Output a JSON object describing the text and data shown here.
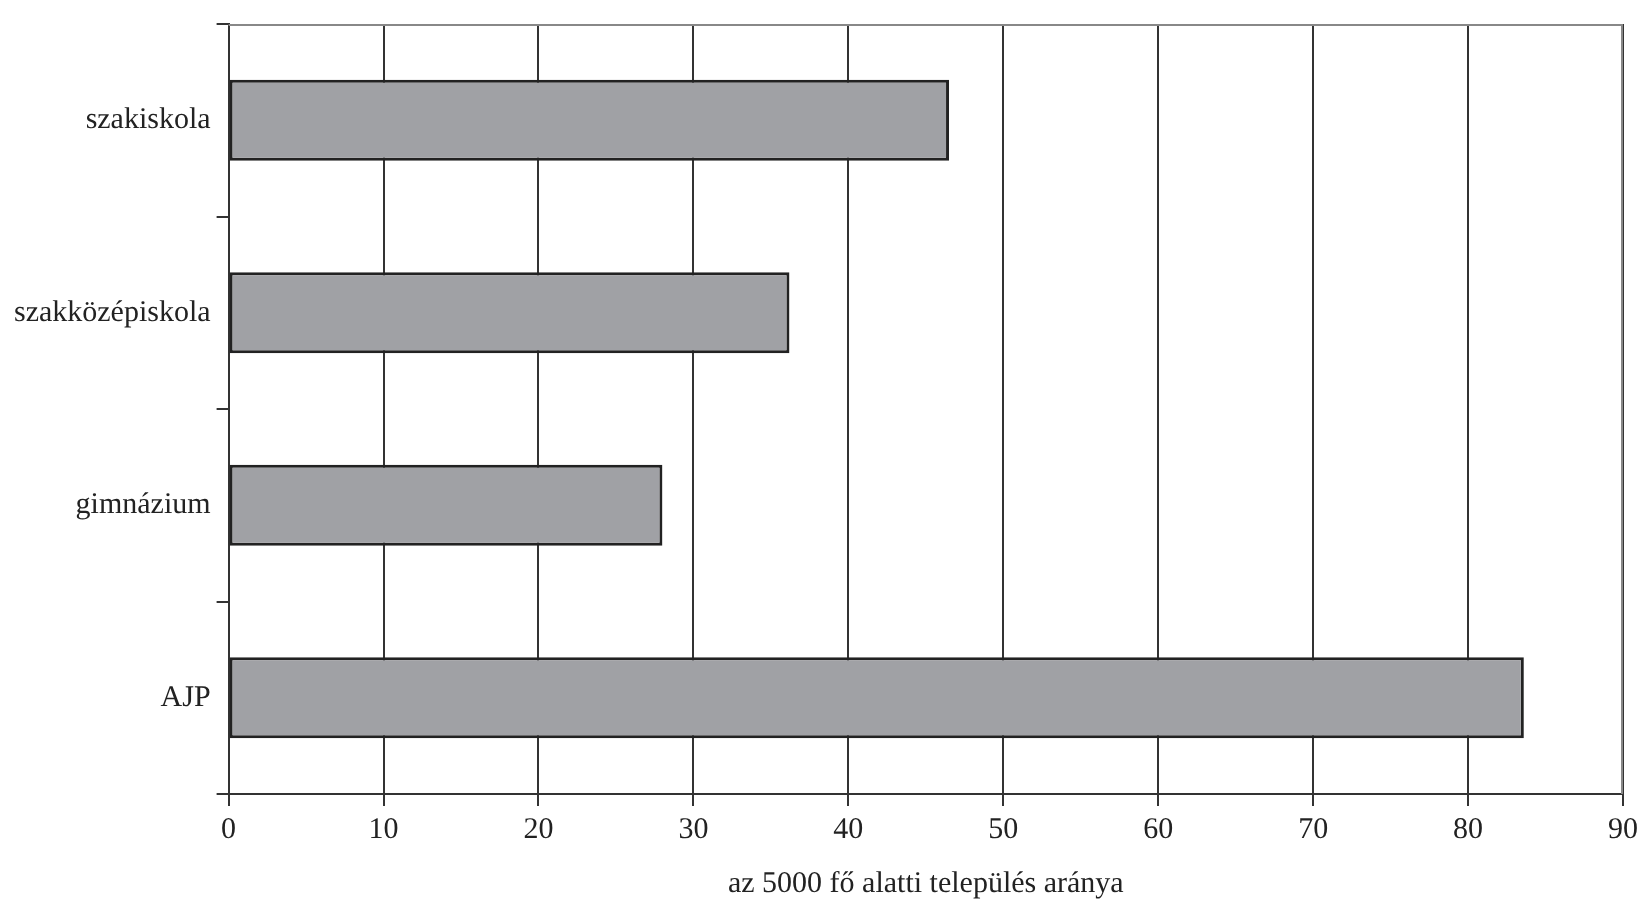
{
  "chart_data": {
    "type": "bar",
    "orientation": "horizontal",
    "categories": [
      "szakiskola",
      "szakközépiskola",
      "gimnázium",
      "AJP"
    ],
    "values": [
      46.5,
      36.2,
      28.0,
      83.6
    ],
    "color": "#a0a1a5",
    "xlim": [
      0,
      90
    ],
    "xticks": [
      0,
      10,
      20,
      30,
      40,
      50,
      60,
      70,
      80,
      90
    ],
    "grid": "x",
    "xlabel": "az 5000 fő alatti település aránya",
    "legend": false
  }
}
